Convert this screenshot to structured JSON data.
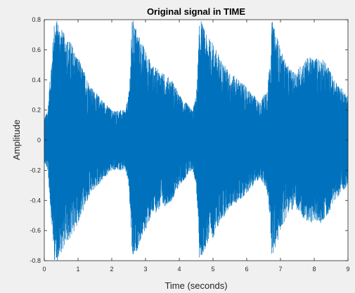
{
  "chart_data": {
    "type": "line",
    "title": "Original signal in TIME",
    "xlabel": "Time (seconds)",
    "ylabel": "Amplitude",
    "xlim": [
      0,
      9
    ],
    "ylim": [
      -0.8,
      0.8
    ],
    "xticks": [
      0,
      1,
      2,
      3,
      4,
      5,
      6,
      7,
      8,
      9
    ],
    "xtick_labels": [
      "0",
      "1",
      "2",
      "3",
      "4",
      "5",
      "6",
      "7",
      "8",
      "9"
    ],
    "yticks": [
      0.8,
      0.6,
      0.4,
      0.2,
      0,
      -0.2,
      -0.4,
      -0.6,
      -0.8
    ],
    "ytick_labels": [
      "0.8",
      "0.6",
      "0.4",
      "0.2",
      "0",
      "-0.2",
      "-0.4",
      "-0.6",
      "-0.8"
    ],
    "grid": false,
    "line_color": "#0072bd",
    "series": [
      {
        "envelope_time": [
          0,
          0.1,
          0.2,
          0.3,
          0.4,
          0.6,
          0.8,
          1.0,
          1.2,
          1.4,
          1.6,
          1.8,
          2.0,
          2.2,
          2.4,
          2.5,
          2.55,
          2.6,
          2.65,
          2.8,
          3.0,
          3.2,
          3.5,
          3.8,
          4.0,
          4.2,
          4.4,
          4.5,
          4.55,
          4.6,
          4.65,
          4.8,
          5.0,
          5.2,
          5.5,
          5.8,
          6.0,
          6.2,
          6.4,
          6.6,
          6.7,
          6.75,
          6.8,
          6.9,
          7.0,
          7.2,
          7.4,
          7.6,
          7.8,
          8.0,
          8.2,
          8.4,
          8.6,
          8.8,
          9.0
        ],
        "envelope_amplitude": [
          0.15,
          0.2,
          0.5,
          0.8,
          0.8,
          0.7,
          0.65,
          0.55,
          0.45,
          0.35,
          0.3,
          0.25,
          0.2,
          0.2,
          0.2,
          0.3,
          0.5,
          0.8,
          0.8,
          0.7,
          0.6,
          0.5,
          0.45,
          0.4,
          0.3,
          0.25,
          0.2,
          0.3,
          0.5,
          0.8,
          0.8,
          0.7,
          0.65,
          0.55,
          0.45,
          0.4,
          0.35,
          0.3,
          0.25,
          0.35,
          0.55,
          0.8,
          0.75,
          0.7,
          0.6,
          0.5,
          0.45,
          0.5,
          0.55,
          0.55,
          0.55,
          0.5,
          0.4,
          0.35,
          0.3
        ]
      }
    ]
  }
}
